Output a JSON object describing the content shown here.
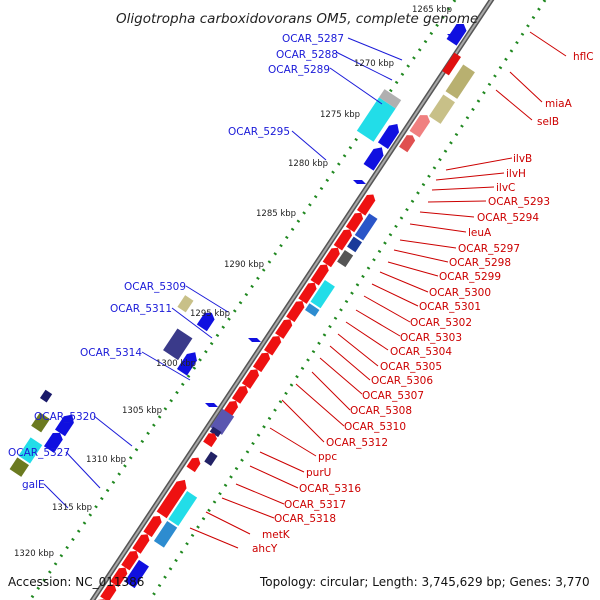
{
  "title": "Oligotropha carboxidovorans OM5, complete genome",
  "footer": {
    "accession": "Accession: NC_011386",
    "topology": "Topology: circular; Length: 3,745,629 bp; Genes: 3,770"
  },
  "colors": {
    "forward_cds": "#1010e0",
    "reverse_cds": "#ee1111",
    "cyan_feature": "#22dde8",
    "olive_feature": "#b8b070",
    "dark_feature": "#222266",
    "scale_dot": "#208820",
    "backbone": "#8a8a8a",
    "label_blue": "#1a1ad8",
    "label_red": "#cc0000"
  },
  "kbp_ticks": [
    "1265 kbp",
    "1270 kbp",
    "1275 kbp",
    "1280 kbp",
    "1285 kbp",
    "1290 kbp",
    "1295 kbp",
    "1300 kbp",
    "1305 kbp",
    "1310 kbp",
    "1315 kbp",
    "1320 kbp"
  ],
  "left_genes": [
    "OCAR_5287",
    "OCAR_5288",
    "OCAR_5289",
    "OCAR_5295",
    "OCAR_5309",
    "OCAR_5311",
    "OCAR_5314",
    "OCAR_5320",
    "OCAR_5327",
    "galE"
  ],
  "right_genes": [
    "hflC",
    "miaA",
    "selB",
    "ilvB",
    "ilvH",
    "ilvC",
    "OCAR_5293",
    "OCAR_5294",
    "leuA",
    "OCAR_5297",
    "OCAR_5298",
    "OCAR_5299",
    "OCAR_5300",
    "OCAR_5301",
    "OCAR_5302",
    "OCAR_5303",
    "OCAR_5304",
    "OCAR_5305",
    "OCAR_5306",
    "OCAR_5307",
    "OCAR_5308",
    "OCAR_5310",
    "OCAR_5312",
    "ppc",
    "purU",
    "OCAR_5316",
    "OCAR_5317",
    "OCAR_5318",
    "metK",
    "ahcY"
  ]
}
